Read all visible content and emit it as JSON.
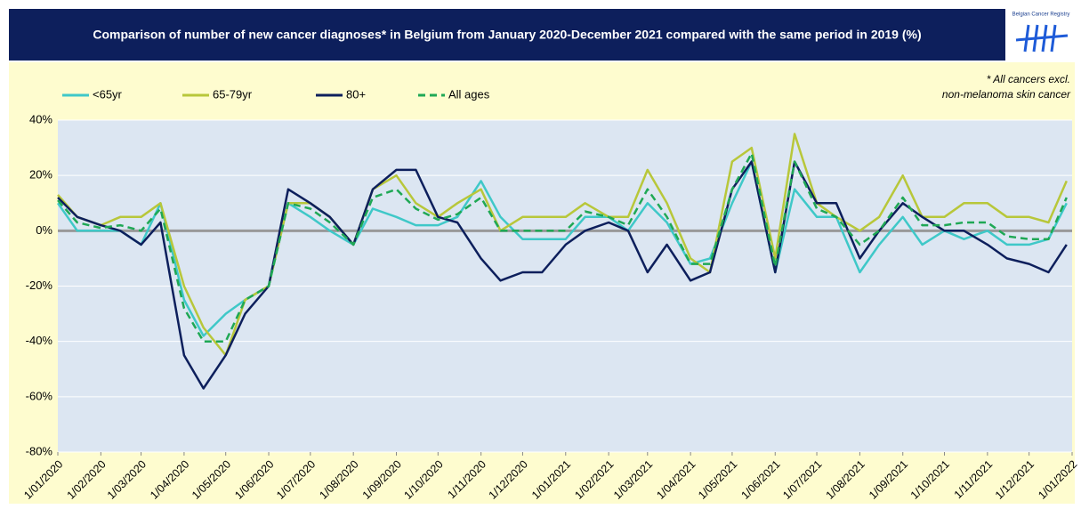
{
  "chart_data": {
    "type": "line",
    "title": "Comparison of number of new cancer diagnoses* in Belgium from January 2020-December 2021 compared with the same period in 2019 (%)",
    "logo_text": "Belgian Cancer Registry",
    "note": [
      "* All cancers excl.",
      "non-melanoma skin cancer"
    ],
    "legend": "top-left",
    "grid": true,
    "x": [
      "2020-01-01",
      "2020-01-15",
      "2020-02-01",
      "2020-02-15",
      "2020-03-01",
      "2020-03-15",
      "2020-04-01",
      "2020-04-15",
      "2020-05-01",
      "2020-05-15",
      "2020-06-01",
      "2020-06-15",
      "2020-07-01",
      "2020-07-15",
      "2020-08-01",
      "2020-08-15",
      "2020-09-01",
      "2020-09-15",
      "2020-10-01",
      "2020-10-15",
      "2020-11-01",
      "2020-11-15",
      "2020-12-01",
      "2020-12-15",
      "2021-01-01",
      "2021-01-15",
      "2021-02-01",
      "2021-02-15",
      "2021-03-01",
      "2021-03-15",
      "2021-04-01",
      "2021-04-15",
      "2021-05-01",
      "2021-05-15",
      "2021-06-01",
      "2021-06-15",
      "2021-07-01",
      "2021-07-15",
      "2021-08-01",
      "2021-08-15",
      "2021-09-01",
      "2021-09-15",
      "2021-10-01",
      "2021-10-15",
      "2021-11-01",
      "2021-11-15",
      "2021-12-01",
      "2021-12-15",
      "2021-12-28"
    ],
    "series": [
      {
        "name": "<65yr",
        "color": "#3fc8c8",
        "dashed": false,
        "values": [
          10,
          0,
          0,
          0,
          -5,
          10,
          -25,
          -38,
          -30,
          -25,
          -20,
          10,
          5,
          0,
          -5,
          8,
          5,
          2,
          2,
          5,
          18,
          5,
          -3,
          -3,
          -3,
          5,
          5,
          0,
          10,
          3,
          -12,
          -10,
          10,
          25,
          -15,
          15,
          5,
          5,
          -15,
          -5,
          5,
          -5,
          0,
          -3,
          0,
          -5,
          -5,
          -3,
          10
        ]
      },
      {
        "name": "65-79yr",
        "color": "#b8c73a",
        "dashed": false,
        "values": [
          13,
          5,
          2,
          5,
          5,
          10,
          -20,
          -35,
          -45,
          -25,
          -20,
          10,
          10,
          5,
          -5,
          15,
          20,
          10,
          5,
          10,
          15,
          0,
          5,
          5,
          5,
          10,
          5,
          5,
          22,
          10,
          -10,
          -15,
          25,
          30,
          -10,
          35,
          10,
          5,
          0,
          5,
          20,
          5,
          5,
          10,
          10,
          5,
          5,
          3,
          18
        ]
      },
      {
        "name": "80+",
        "color": "#0d1f5c",
        "dashed": false,
        "values": [
          12,
          5,
          2,
          0,
          -5,
          3,
          -45,
          -57,
          -45,
          -30,
          -20,
          15,
          10,
          5,
          -5,
          15,
          22,
          22,
          5,
          3,
          -10,
          -18,
          -15,
          -15,
          -5,
          0,
          3,
          0,
          -15,
          -5,
          -18,
          -15,
          15,
          25,
          -15,
          25,
          10,
          10,
          -10,
          0,
          10,
          5,
          0,
          0,
          -5,
          -10,
          -12,
          -15,
          -5
        ]
      },
      {
        "name": "All ages",
        "color": "#1fa855",
        "dashed": true,
        "values": [
          11,
          3,
          1,
          2,
          0,
          8,
          -28,
          -40,
          -40,
          -25,
          -20,
          10,
          8,
          3,
          -5,
          12,
          15,
          8,
          4,
          6,
          12,
          0,
          0,
          0,
          0,
          7,
          5,
          2,
          15,
          5,
          -12,
          -12,
          15,
          28,
          -13,
          25,
          8,
          5,
          -5,
          0,
          12,
          2,
          2,
          3,
          3,
          -2,
          -3,
          -3,
          12
        ]
      }
    ],
    "xlim": [
      "2020-01-01",
      "2022-01-01"
    ],
    "xticks": [
      {
        "value": "2020-01-01",
        "label": "1/01/2020"
      },
      {
        "value": "2020-02-01",
        "label": "1/02/2020"
      },
      {
        "value": "2020-03-01",
        "label": "1/03/2020"
      },
      {
        "value": "2020-04-01",
        "label": "1/04/2020"
      },
      {
        "value": "2020-05-01",
        "label": "1/05/2020"
      },
      {
        "value": "2020-06-01",
        "label": "1/06/2020"
      },
      {
        "value": "2020-07-01",
        "label": "1/07/2020"
      },
      {
        "value": "2020-08-01",
        "label": "1/08/2020"
      },
      {
        "value": "2020-09-01",
        "label": "1/09/2020"
      },
      {
        "value": "2020-10-01",
        "label": "1/10/2020"
      },
      {
        "value": "2020-11-01",
        "label": "1/11/2020"
      },
      {
        "value": "2020-12-01",
        "label": "1/12/2020"
      },
      {
        "value": "2021-01-01",
        "label": "1/01/2021"
      },
      {
        "value": "2021-02-01",
        "label": "1/02/2021"
      },
      {
        "value": "2021-03-01",
        "label": "1/03/2021"
      },
      {
        "value": "2021-04-01",
        "label": "1/04/2021"
      },
      {
        "value": "2021-05-01",
        "label": "1/05/2021"
      },
      {
        "value": "2021-06-01",
        "label": "1/06/2021"
      },
      {
        "value": "2021-07-01",
        "label": "1/07/2021"
      },
      {
        "value": "2021-08-01",
        "label": "1/08/2021"
      },
      {
        "value": "2021-09-01",
        "label": "1/09/2021"
      },
      {
        "value": "2021-10-01",
        "label": "1/10/2021"
      },
      {
        "value": "2021-11-01",
        "label": "1/11/2021"
      },
      {
        "value": "2021-12-01",
        "label": "1/12/2021"
      },
      {
        "value": "2022-01-01",
        "label": "1/01/2022"
      }
    ],
    "ylim": [
      -80,
      40
    ],
    "yticks": [
      {
        "value": -80,
        "label": "-80%"
      },
      {
        "value": -60,
        "label": "-60%"
      },
      {
        "value": -40,
        "label": "-40%"
      },
      {
        "value": -20,
        "label": "-20%"
      },
      {
        "value": 0,
        "label": "0%"
      },
      {
        "value": 20,
        "label": "20%"
      },
      {
        "value": 40,
        "label": "40%"
      }
    ]
  }
}
